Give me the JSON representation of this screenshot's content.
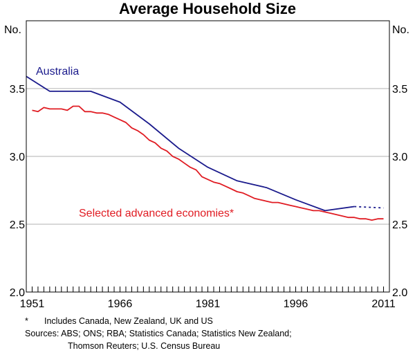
{
  "chart_data": {
    "type": "line",
    "title": "Average Household Size",
    "ylabel_left": "No.",
    "ylabel_right": "No.",
    "ylim": [
      2.0,
      4.0
    ],
    "yticks": [
      2.0,
      2.5,
      3.0,
      3.5
    ],
    "ytick_labels": [
      "2.0",
      "2.5",
      "3.0",
      "3.5"
    ],
    "xlim": [
      1950,
      2012
    ],
    "xticks": [
      1951,
      1966,
      1981,
      1996,
      2011
    ],
    "xtick_labels": [
      "1951",
      "1966",
      "1981",
      "1996",
      "2011"
    ],
    "minor_tick_years_from": 1950,
    "minor_tick_years_to": 2012,
    "grid": true,
    "series": [
      {
        "name": "Australia",
        "color": "#1a1a8c",
        "x": [
          1950,
          1954,
          1961,
          1966,
          1971,
          1976,
          1981,
          1986,
          1991,
          1996,
          2001,
          2006
        ],
        "values": [
          3.59,
          3.48,
          3.48,
          3.4,
          3.24,
          3.06,
          2.92,
          2.82,
          2.77,
          2.68,
          2.6,
          2.63
        ],
        "projection_x": [
          2006,
          2011
        ],
        "projection_values": [
          2.63,
          2.62
        ]
      },
      {
        "name": "Selected advanced economies*",
        "color": "#e01b22",
        "x": [
          1951,
          1952,
          1953,
          1954,
          1955,
          1956,
          1957,
          1958,
          1959,
          1960,
          1961,
          1962,
          1963,
          1964,
          1965,
          1966,
          1967,
          1968,
          1969,
          1970,
          1971,
          1972,
          1973,
          1974,
          1975,
          1976,
          1977,
          1978,
          1979,
          1980,
          1981,
          1982,
          1983,
          1984,
          1985,
          1986,
          1987,
          1988,
          1989,
          1990,
          1991,
          1992,
          1993,
          1994,
          1995,
          1996,
          1997,
          1998,
          1999,
          2000,
          2001,
          2002,
          2003,
          2004,
          2005,
          2006,
          2007,
          2008,
          2009,
          2010,
          2011
        ],
        "values": [
          3.34,
          3.33,
          3.36,
          3.35,
          3.35,
          3.35,
          3.34,
          3.37,
          3.37,
          3.33,
          3.33,
          3.32,
          3.32,
          3.31,
          3.29,
          3.27,
          3.25,
          3.21,
          3.19,
          3.16,
          3.12,
          3.1,
          3.06,
          3.04,
          3.0,
          2.98,
          2.95,
          2.92,
          2.9,
          2.85,
          2.83,
          2.81,
          2.8,
          2.78,
          2.76,
          2.74,
          2.73,
          2.71,
          2.69,
          2.68,
          2.67,
          2.66,
          2.66,
          2.65,
          2.64,
          2.63,
          2.62,
          2.61,
          2.6,
          2.6,
          2.59,
          2.58,
          2.57,
          2.56,
          2.55,
          2.55,
          2.54,
          2.54,
          2.53,
          2.54,
          2.54
        ]
      }
    ],
    "annotations": {
      "australia_label": "Australia",
      "advanced_label": "Selected advanced economies*"
    }
  },
  "notes": {
    "footnote_mark": "*",
    "footnote_text": "Includes Canada, New Zealand, UK and US",
    "sources_line1": "Sources: ABS; ONS; RBA; Statistics Canada; Statistics New Zealand;",
    "sources_line2": "Thomson Reuters; U.S. Census Bureau"
  }
}
